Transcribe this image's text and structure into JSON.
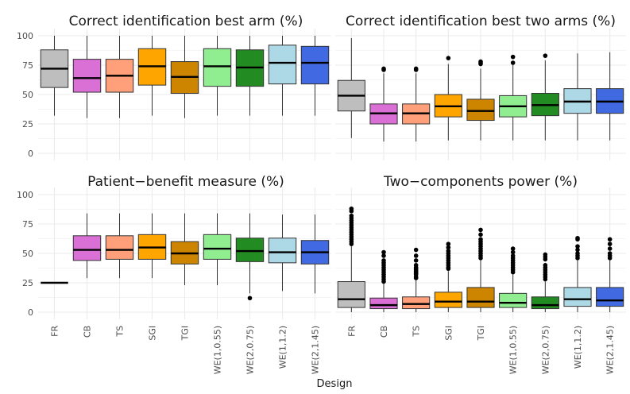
{
  "chart_data": {
    "type": "boxplot",
    "xlabel": "Design",
    "ylabel": "",
    "ylim": [
      0,
      100
    ],
    "yticks": [
      0,
      25,
      50,
      75,
      100
    ],
    "categories": [
      "FR",
      "CB",
      "TS",
      "SGI",
      "TGI",
      "WE(1,0.55)",
      "WE(2,0.75)",
      "WE(1,1.2)",
      "WE(2,1.45)"
    ],
    "colors": [
      "#bebebe",
      "#da70d6",
      "#ffa07a",
      "#ffa500",
      "#cd8500",
      "#90ee90",
      "#228b22",
      "#add8e6",
      "#4169e1"
    ],
    "panels": [
      {
        "title": "Correct identification best arm (%)",
        "boxes": [
          {
            "min": 32,
            "q1": 56,
            "median": 72,
            "q3": 88,
            "max": 100,
            "outliers": []
          },
          {
            "min": 30,
            "q1": 52,
            "median": 64,
            "q3": 80,
            "max": 100,
            "outliers": []
          },
          {
            "min": 30,
            "q1": 52,
            "median": 66,
            "q3": 80,
            "max": 100,
            "outliers": []
          },
          {
            "min": 32,
            "q1": 58,
            "median": 74,
            "q3": 89,
            "max": 100,
            "outliers": []
          },
          {
            "min": 30,
            "q1": 51,
            "median": 65,
            "q3": 78,
            "max": 100,
            "outliers": []
          },
          {
            "min": 32,
            "q1": 57,
            "median": 74,
            "q3": 89,
            "max": 100,
            "outliers": []
          },
          {
            "min": 32,
            "q1": 57,
            "median": 73,
            "q3": 88,
            "max": 100,
            "outliers": []
          },
          {
            "min": 32,
            "q1": 59,
            "median": 77,
            "q3": 92,
            "max": 100,
            "outliers": []
          },
          {
            "min": 32,
            "q1": 59,
            "median": 77,
            "q3": 91,
            "max": 100,
            "outliers": []
          }
        ]
      },
      {
        "title": "Correct identification best two arms (%)",
        "boxes": [
          {
            "min": 13,
            "q1": 36,
            "median": 49,
            "q3": 62,
            "max": 98,
            "outliers": []
          },
          {
            "min": 10,
            "q1": 25,
            "median": 34,
            "q3": 42,
            "max": 68,
            "outliers": [
              71,
              72
            ]
          },
          {
            "min": 10,
            "q1": 25,
            "median": 34,
            "q3": 42,
            "max": 68,
            "outliers": [
              71,
              72
            ]
          },
          {
            "min": 11,
            "q1": 31,
            "median": 40,
            "q3": 50,
            "max": 76,
            "outliers": [
              81
            ]
          },
          {
            "min": 11,
            "q1": 28,
            "median": 36,
            "q3": 46,
            "max": 72,
            "outliers": [
              76,
              77,
              78
            ]
          },
          {
            "min": 11,
            "q1": 31,
            "median": 40,
            "q3": 49,
            "max": 75,
            "outliers": [
              77,
              82
            ]
          },
          {
            "min": 11,
            "q1": 32,
            "median": 41,
            "q3": 51,
            "max": 79,
            "outliers": [
              83
            ]
          },
          {
            "min": 11,
            "q1": 34,
            "median": 44,
            "q3": 55,
            "max": 85,
            "outliers": []
          },
          {
            "min": 11,
            "q1": 34,
            "median": 44,
            "q3": 55,
            "max": 86,
            "outliers": []
          }
        ]
      },
      {
        "title": "Patient−benefit measure (%)",
        "boxes": [
          {
            "min": 25,
            "q1": 25,
            "median": 25,
            "q3": 25,
            "max": 25,
            "outliers": []
          },
          {
            "min": 29,
            "q1": 44,
            "median": 53,
            "q3": 65,
            "max": 84,
            "outliers": []
          },
          {
            "min": 29,
            "q1": 45,
            "median": 53,
            "q3": 65,
            "max": 84,
            "outliers": []
          },
          {
            "min": 29,
            "q1": 45,
            "median": 55,
            "q3": 66,
            "max": 84,
            "outliers": []
          },
          {
            "min": 23,
            "q1": 41,
            "median": 50,
            "q3": 60,
            "max": 84,
            "outliers": []
          },
          {
            "min": 23,
            "q1": 45,
            "median": 54,
            "q3": 66,
            "max": 84,
            "outliers": []
          },
          {
            "min": 16,
            "q1": 43,
            "median": 52,
            "q3": 63,
            "max": 84,
            "outliers": [
              12
            ]
          },
          {
            "min": 18,
            "q1": 42,
            "median": 51,
            "q3": 63,
            "max": 83,
            "outliers": []
          },
          {
            "min": 16,
            "q1": 41,
            "median": 51,
            "q3": 61,
            "max": 83,
            "outliers": []
          }
        ]
      },
      {
        "title": "Two−components power (%)",
        "boxes": [
          {
            "min": 0,
            "q1": 4,
            "median": 11,
            "q3": 26,
            "max": 56,
            "outliers": [
              58,
              60,
              62,
              64,
              66,
              68,
              70,
              72,
              74,
              76,
              78,
              80,
              82,
              86,
              88
            ]
          },
          {
            "min": 0,
            "q1": 3,
            "median": 6,
            "q3": 12,
            "max": 24,
            "outliers": [
              26,
              28,
              30,
              32,
              34,
              36,
              38,
              40,
              42,
              44,
              48,
              51
            ]
          },
          {
            "min": 0,
            "q1": 3,
            "median": 7,
            "q3": 13,
            "max": 27,
            "outliers": [
              29,
              30,
              32,
              33,
              34,
              35,
              36,
              37,
              38,
              40,
              44,
              48,
              53
            ]
          },
          {
            "min": 0,
            "q1": 4,
            "median": 9,
            "q3": 17,
            "max": 35,
            "outliers": [
              37,
              38,
              40,
              42,
              44,
              46,
              48,
              50,
              52,
              55,
              58
            ]
          },
          {
            "min": 0,
            "q1": 4,
            "median": 9,
            "q3": 21,
            "max": 44,
            "outliers": [
              46,
              48,
              50,
              52,
              54,
              56,
              58,
              60,
              62,
              66,
              70
            ]
          },
          {
            "min": 0,
            "q1": 4,
            "median": 8,
            "q3": 16,
            "max": 32,
            "outliers": [
              34,
              36,
              38,
              40,
              42,
              44,
              46,
              48,
              51,
              54
            ]
          },
          {
            "min": 0,
            "q1": 3,
            "median": 6,
            "q3": 13,
            "max": 26,
            "outliers": [
              28,
              30,
              32,
              34,
              36,
              38,
              40,
              45,
              47,
              49
            ]
          },
          {
            "min": 0,
            "q1": 5,
            "median": 11,
            "q3": 21,
            "max": 44,
            "outliers": [
              46,
              48,
              50,
              53,
              56,
              62,
              63
            ]
          },
          {
            "min": 0,
            "q1": 5,
            "median": 10,
            "q3": 21,
            "max": 44,
            "outliers": [
              46,
              48,
              50,
              54,
              58,
              62
            ]
          }
        ]
      }
    ]
  }
}
